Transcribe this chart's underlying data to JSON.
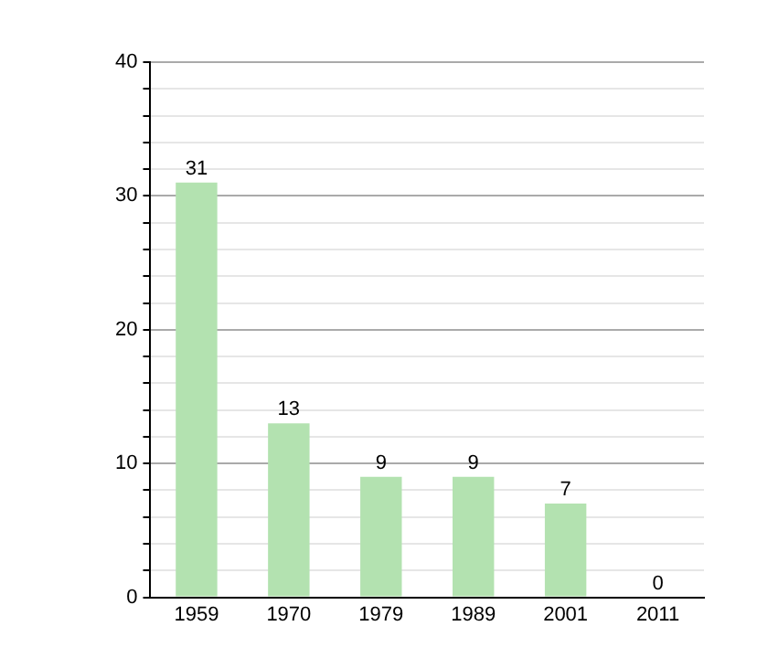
{
  "chart_data": {
    "type": "bar",
    "categories": [
      "1959",
      "1970",
      "1979",
      "1989",
      "2001",
      "2011"
    ],
    "values": [
      31,
      13,
      9,
      9,
      7,
      0
    ],
    "color": "#b3e2b0",
    "ylim": [
      0,
      40
    ],
    "yticks": [
      0,
      {
        "value": 2,
        "label": null
      },
      {
        "value": 4,
        "label": null
      },
      {
        "value": 6,
        "label": null
      },
      {
        "value": 8,
        "label": null
      },
      10,
      {
        "value": 12,
        "label": null
      },
      {
        "value": 14,
        "label": null
      },
      {
        "value": 16,
        "label": null
      },
      {
        "value": 18,
        "label": null
      },
      20,
      {
        "value": 22,
        "label": null
      },
      {
        "value": 24,
        "label": null
      },
      {
        "value": 26,
        "label": null
      },
      {
        "value": 28,
        "label": null
      },
      30,
      {
        "value": 32,
        "label": null
      },
      {
        "value": 34,
        "label": null
      },
      {
        "value": 36,
        "label": null
      },
      {
        "value": 38,
        "label": null
      },
      40
    ],
    "grid": true,
    "data_labels": true
  }
}
